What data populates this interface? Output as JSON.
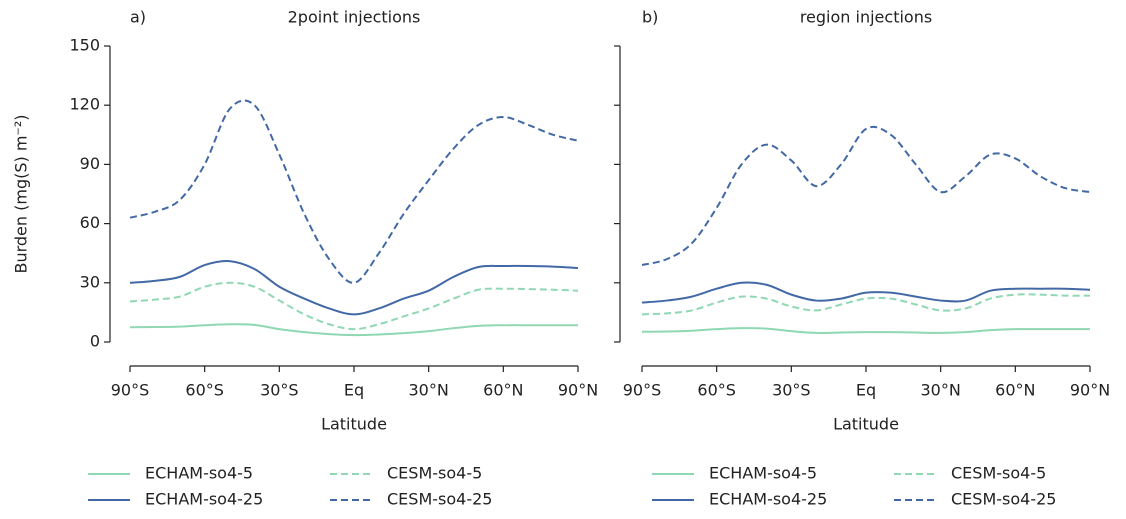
{
  "chart_data": [
    {
      "type": "line",
      "panel_label": "a)",
      "title": "2point injections",
      "xlabel": "Latitude",
      "ylabel": "Burden (mg(S) m⁻²)",
      "x": [
        -90,
        -80,
        -70,
        -60,
        -50,
        -40,
        -30,
        -20,
        -10,
        0,
        10,
        20,
        30,
        40,
        50,
        60,
        70,
        80,
        90
      ],
      "series": [
        {
          "name": "ECHAM-so4-5",
          "color": "#8fd8b3",
          "dash": false,
          "values": [
            7.5,
            7.6,
            7.8,
            8.5,
            9,
            8.7,
            6.5,
            5,
            4,
            3.5,
            3.8,
            4.5,
            5.5,
            7,
            8.2,
            8.5,
            8.5,
            8.5,
            8.5
          ]
        },
        {
          "name": "CESM-so4-5",
          "color": "#8fd8b3",
          "dash": true,
          "values": [
            20.5,
            21.5,
            23,
            28,
            30,
            28,
            21,
            14,
            9,
            6.5,
            9,
            13,
            17,
            22,
            26.5,
            27,
            26.8,
            26.5,
            26
          ]
        },
        {
          "name": "ECHAM-so4-25",
          "color": "#4269a6",
          "dash": false,
          "values": [
            30,
            31,
            33,
            39,
            41,
            37,
            28,
            22,
            17,
            14,
            17,
            22,
            26,
            33,
            38,
            38.5,
            38.5,
            38.2,
            37.5
          ]
        },
        {
          "name": "CESM-so4-25",
          "color": "#4269a6",
          "dash": true,
          "values": [
            63,
            66,
            72,
            90,
            118,
            120,
            95,
            65,
            42,
            30,
            45,
            65,
            82,
            98,
            110,
            114,
            110,
            105,
            102
          ]
        }
      ],
      "xlim": [
        -90,
        90
      ],
      "xticks": [
        {
          "value": -90,
          "label": "90°S"
        },
        {
          "value": -60,
          "label": "60°S"
        },
        {
          "value": -30,
          "label": "30°S"
        },
        {
          "value": 0,
          "label": "Eq"
        },
        {
          "value": 30,
          "label": "30°N"
        },
        {
          "value": 60,
          "label": "60°N"
        },
        {
          "value": 90,
          "label": "90°N"
        }
      ],
      "ylim": [
        0,
        150
      ],
      "yticks": [
        0,
        30,
        60,
        90,
        120,
        150
      ],
      "legend": "below"
    },
    {
      "type": "line",
      "panel_label": "b)",
      "title": "region injections",
      "xlabel": "Latitude",
      "x": [
        -90,
        -80,
        -70,
        -60,
        -50,
        -40,
        -30,
        -20,
        -10,
        0,
        10,
        20,
        30,
        40,
        50,
        60,
        70,
        80,
        90
      ],
      "series": [
        {
          "name": "ECHAM-so4-5",
          "color": "#8fd8b3",
          "dash": false,
          "values": [
            5.2,
            5.3,
            5.7,
            6.5,
            7,
            6.8,
            5.5,
            4.6,
            4.8,
            5,
            5,
            4.8,
            4.6,
            5,
            6,
            6.5,
            6.5,
            6.5,
            6.5
          ]
        },
        {
          "name": "CESM-so4-5",
          "color": "#8fd8b3",
          "dash": true,
          "values": [
            14,
            14.5,
            16,
            20,
            23,
            22,
            18,
            16,
            19,
            22,
            22,
            19,
            16,
            17,
            22,
            24,
            24,
            23.5,
            23.5
          ]
        },
        {
          "name": "ECHAM-so4-25",
          "color": "#4269a6",
          "dash": false,
          "values": [
            20,
            21,
            23,
            27,
            30,
            29,
            24,
            21,
            22,
            25,
            25,
            23,
            21,
            21,
            26,
            27,
            27,
            27,
            26.5
          ]
        },
        {
          "name": "CESM-so4-25",
          "color": "#4269a6",
          "dash": true,
          "values": [
            39,
            42,
            50,
            68,
            90,
            100,
            92,
            79,
            90,
            108,
            105,
            90,
            76,
            84,
            95,
            93,
            84,
            78,
            76
          ]
        }
      ],
      "xlim": [
        -90,
        90
      ],
      "xticks": [
        {
          "value": -90,
          "label": "90°S"
        },
        {
          "value": -60,
          "label": "60°S"
        },
        {
          "value": -30,
          "label": "30°S"
        },
        {
          "value": 0,
          "label": "Eq"
        },
        {
          "value": 30,
          "label": "30°N"
        },
        {
          "value": 60,
          "label": "60°N"
        },
        {
          "value": 90,
          "label": "90°N"
        }
      ],
      "ylim": [
        0,
        150
      ],
      "yticks": [
        0,
        30,
        60,
        90,
        120,
        150
      ],
      "legend": "below"
    }
  ]
}
